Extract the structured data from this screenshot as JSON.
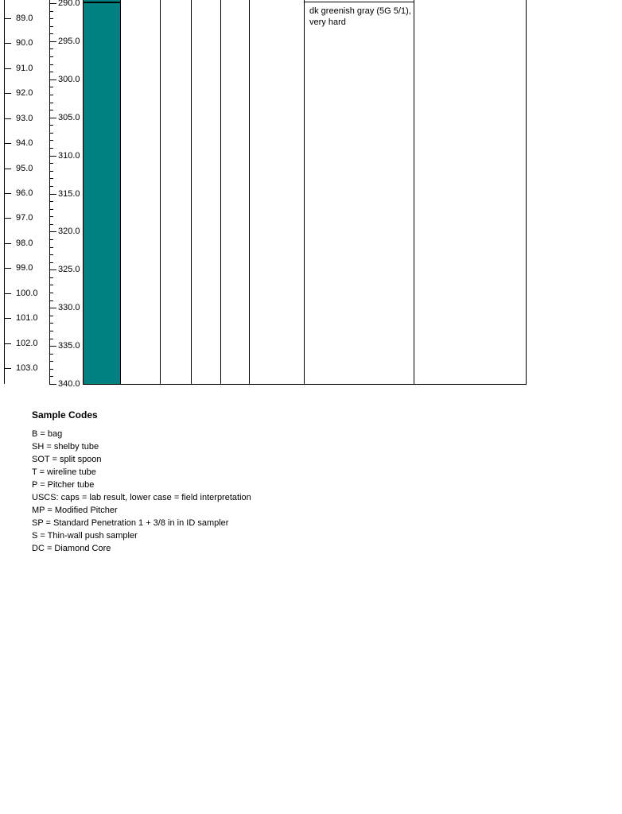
{
  "page": {
    "background_color": "#ffffff"
  },
  "chart_data": {
    "type": "table",
    "log_kind": "geotechnical-boring-log-depth-section",
    "depth_scale_m": {
      "unit": "m",
      "major_ticks": [
        89.0,
        90.0,
        91.0,
        92.0,
        93.0,
        94.0,
        95.0,
        96.0,
        97.0,
        98.0,
        99.0,
        100.0,
        101.0,
        102.0,
        103.0
      ]
    },
    "depth_scale_ft": {
      "unit": "ft",
      "top_value": 290.0,
      "bottom_value": 340.0,
      "minor_tick_step": 1.0,
      "major_ticks": [
        290.0,
        295.0,
        300.0,
        305.0,
        310.0,
        315.0,
        320.0,
        325.0,
        330.0,
        335.0,
        340.0
      ]
    },
    "grid_empty_columns": 5,
    "lithology_intervals": [
      {
        "top_ft": 290.0,
        "bottom_ft": 340.0,
        "fill_color": "#008080",
        "top_boundary_line": true,
        "extends_above_view": true
      }
    ],
    "descriptions": [
      {
        "top_ft": 290.0,
        "text": "dk greenish gray (5G 5/1), very hard"
      }
    ]
  },
  "legend": {
    "title": "Sample Codes",
    "items": [
      "B = bag",
      "SH = shelby tube",
      "SOT = split spoon",
      "T = wireline tube",
      "P = Pitcher tube",
      "USCS: caps = lab result, lower case = field interpretation",
      "MP = Modified Pitcher",
      "SP = Standard Penetration 1 + 3/8 in in ID sampler",
      "S = Thin-wall push sampler",
      "DC = Diamond Core"
    ]
  },
  "colors": {
    "lithology_teal": "#008080",
    "line_black": "#000000"
  }
}
